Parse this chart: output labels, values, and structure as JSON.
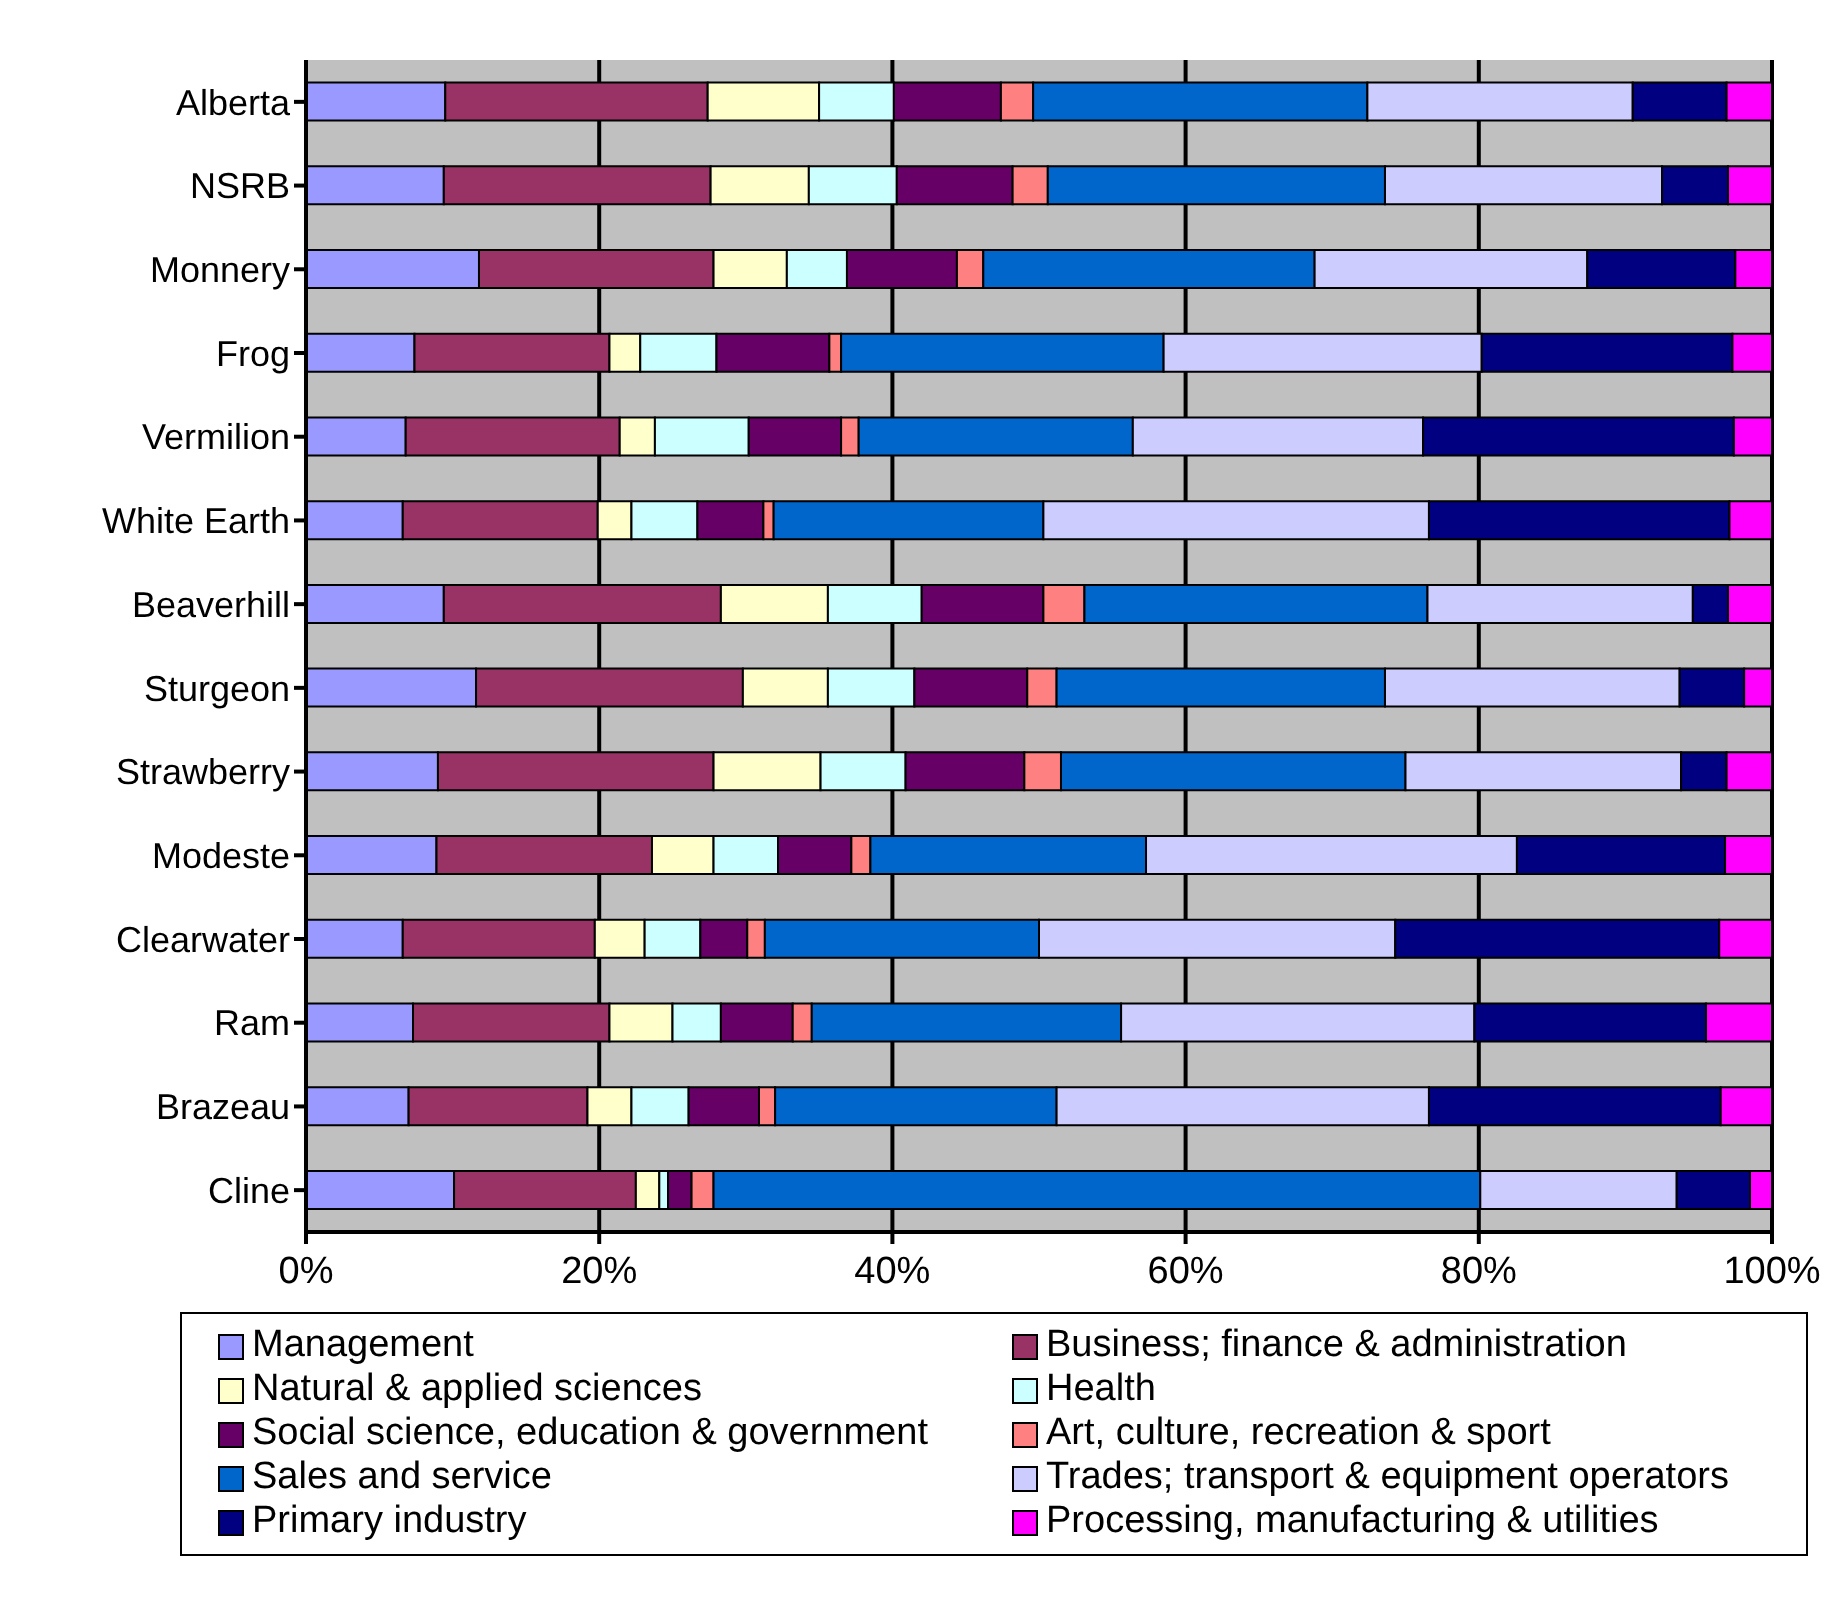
{
  "chart_data": {
    "type": "bar",
    "orientation": "horizontal",
    "stacked": true,
    "categories": [
      "Alberta",
      "NSRB",
      "Monnery",
      "Frog",
      "Vermilion",
      "White Earth",
      "Beaverhill",
      "Sturgeon",
      "Strawberry",
      "Modeste",
      "Clearwater",
      "Ram",
      "Brazeau",
      "Cline"
    ],
    "series": [
      {
        "name": "Management",
        "color": "#9999ff",
        "values": [
          9.5,
          9.4,
          11.8,
          7.4,
          6.8,
          6.6,
          9.4,
          11.6,
          9.0,
          8.9,
          6.6,
          7.3,
          7.0,
          10.1
        ]
      },
      {
        "name": "Business; finance & administration",
        "color": "#993366",
        "values": [
          17.9,
          18.2,
          16.0,
          13.3,
          14.6,
          13.3,
          18.9,
          18.2,
          18.8,
          14.7,
          13.1,
          13.4,
          12.2,
          12.4
        ]
      },
      {
        "name": "Natural & applied sciences",
        "color": "#ffffcc",
        "values": [
          7.6,
          6.7,
          5.0,
          2.1,
          2.4,
          2.3,
          7.3,
          5.8,
          7.3,
          4.2,
          3.4,
          4.3,
          3.0,
          1.6
        ]
      },
      {
        "name": "Health",
        "color": "#ccffff",
        "values": [
          5.1,
          6.0,
          4.1,
          5.2,
          6.4,
          4.5,
          6.4,
          5.9,
          5.8,
          4.4,
          3.8,
          3.3,
          3.9,
          0.6
        ]
      },
      {
        "name": "Social science, education & government",
        "color": "#660066",
        "values": [
          7.3,
          7.9,
          7.5,
          7.7,
          6.3,
          4.5,
          8.3,
          7.7,
          8.1,
          5.0,
          3.2,
          4.9,
          4.8,
          1.6
        ]
      },
      {
        "name": "Art, culture, recreation & sport",
        "color": "#ff8080",
        "values": [
          2.2,
          2.4,
          1.8,
          0.8,
          1.2,
          0.7,
          2.8,
          2.0,
          2.5,
          1.3,
          1.2,
          1.3,
          1.1,
          1.5
        ]
      },
      {
        "name": "Sales and service",
        "color": "#0066cc",
        "values": [
          22.8,
          23.0,
          22.6,
          22.0,
          18.7,
          18.4,
          23.4,
          22.4,
          23.5,
          18.8,
          18.7,
          21.1,
          19.2,
          52.3
        ]
      },
      {
        "name": "Trades; transport & equipment operators",
        "color": "#ccccff",
        "values": [
          18.1,
          18.9,
          18.6,
          21.7,
          19.8,
          26.3,
          18.1,
          20.1,
          18.8,
          25.3,
          24.3,
          24.1,
          25.4,
          13.4
        ]
      },
      {
        "name": "Primary industry",
        "color": "#000080",
        "values": [
          6.4,
          4.5,
          10.1,
          17.1,
          21.2,
          20.5,
          2.4,
          4.4,
          3.1,
          14.2,
          22.1,
          15.8,
          19.9,
          5.0
        ]
      },
      {
        "name": "Processing, manufacturing & utilities",
        "color": "#ff00ff",
        "values": [
          3.1,
          3.0,
          2.5,
          2.7,
          2.6,
          2.9,
          3.0,
          1.9,
          3.1,
          3.2,
          3.6,
          4.5,
          3.5,
          1.5
        ]
      }
    ],
    "xlim": [
      0,
      100
    ],
    "xticks": [
      {
        "value": 0,
        "label": "0%"
      },
      {
        "value": 20,
        "label": "20%"
      },
      {
        "value": 40,
        "label": "40%"
      },
      {
        "value": 60,
        "label": "60%"
      },
      {
        "value": 80,
        "label": "80%"
      },
      {
        "value": 100,
        "label": "100%"
      }
    ],
    "grid": "x",
    "legend": "bottom"
  }
}
